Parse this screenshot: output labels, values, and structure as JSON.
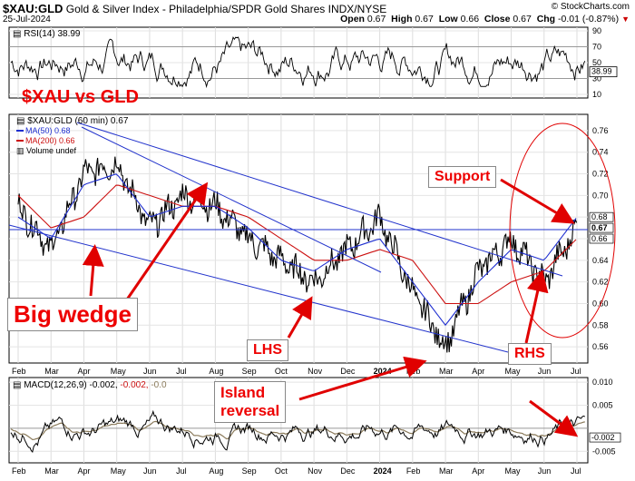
{
  "header": {
    "symbol": "$XAU:GLD",
    "description": "Gold & Silver Index - Philadelphia/SPDR Gold Shares INDX/NYSE",
    "date": "25-Jul-2024",
    "brand": "© StockCharts.com",
    "open_label": "Open",
    "open": "0.67",
    "high_label": "High",
    "high": "0.67",
    "low_label": "Low",
    "low": "0.66",
    "close_label": "Close",
    "close": "0.67",
    "chg_label": "Chg",
    "chg": "-0.01 (-0.87%)"
  },
  "rsi_panel": {
    "label": "RSI(14) 38.99",
    "ticks": [
      "90",
      "70",
      "50",
      "30",
      "10"
    ],
    "current": "38.99"
  },
  "main_panel": {
    "legend": {
      "price": "$XAU:GLD (60 min) 0.67",
      "ma50": "MA(50) 0.68",
      "ma200": "MA(200) 0.66",
      "volume": "Volume undef"
    },
    "y_ticks": [
      "0.76",
      "0.74",
      "0.72",
      "0.70",
      "0.68",
      "0.66",
      "0.64",
      "0.62",
      "0.60",
      "0.58",
      "0.56"
    ],
    "right_labels": [
      "0.68",
      "0.67",
      "0.66"
    ],
    "x_labels": [
      "Feb",
      "Mar",
      "Apr",
      "May",
      "Jun",
      "Jul",
      "Aug",
      "Sep",
      "Oct",
      "Nov",
      "Dec",
      "2024",
      "Feb",
      "Mar",
      "Apr",
      "May",
      "Jun",
      "Jul"
    ]
  },
  "macd_panel": {
    "label_prefix": "MACD(12,26,9)",
    "v1": "-0.002",
    "v2": "-0.002",
    "v3": "-0.0",
    "ticks": [
      "0.010",
      "0.005",
      "",
      "-0.005"
    ],
    "right_labels": [
      "-0.002"
    ],
    "x_labels": [
      "Feb",
      "Mar",
      "Apr",
      "May",
      "Jun",
      "Jul",
      "Aug",
      "Sep",
      "Oct",
      "Nov",
      "Dec",
      "2024",
      "Feb",
      "Mar",
      "Apr",
      "May",
      "Jun",
      "Jul"
    ]
  },
  "annotations": {
    "title": "$XAU vs GLD",
    "big_wedge": "Big wedge",
    "support": "Support",
    "lhs": "LHS",
    "rhs": "RHS",
    "island": "Island\nreversal"
  },
  "colors": {
    "price": "#000000",
    "ma50": "#1f2fd0",
    "ma200": "#cc1111",
    "annotation": "#e00000",
    "signal": "#8a7a5a"
  },
  "chart_data": {
    "type": "line",
    "title": "$XAU vs GLD",
    "x": [
      "Feb",
      "Mar",
      "Apr",
      "May",
      "Jun",
      "Jul",
      "Aug",
      "Sep",
      "Oct",
      "Nov",
      "Dec",
      "2024",
      "Feb",
      "Mar",
      "Apr",
      "May",
      "Jun",
      "Jul"
    ],
    "ylim": [
      0.545,
      0.775
    ],
    "series": [
      {
        "name": "$XAU:GLD (60 min) 0.67",
        "values": [
          0.69,
          0.65,
          0.72,
          0.73,
          0.67,
          0.7,
          0.69,
          0.66,
          0.64,
          0.62,
          0.65,
          0.68,
          0.61,
          0.56,
          0.63,
          0.66,
          0.62,
          0.67
        ]
      },
      {
        "name": "MA(50) 0.68",
        "values": [
          0.68,
          0.66,
          0.71,
          0.72,
          0.68,
          0.69,
          0.69,
          0.67,
          0.64,
          0.63,
          0.65,
          0.66,
          0.62,
          0.58,
          0.62,
          0.65,
          0.64,
          0.68
        ]
      },
      {
        "name": "MA(200) 0.66",
        "values": [
          0.7,
          0.67,
          0.68,
          0.71,
          0.7,
          0.69,
          0.69,
          0.68,
          0.66,
          0.64,
          0.64,
          0.65,
          0.64,
          0.6,
          0.6,
          0.62,
          0.63,
          0.66
        ]
      }
    ]
  }
}
